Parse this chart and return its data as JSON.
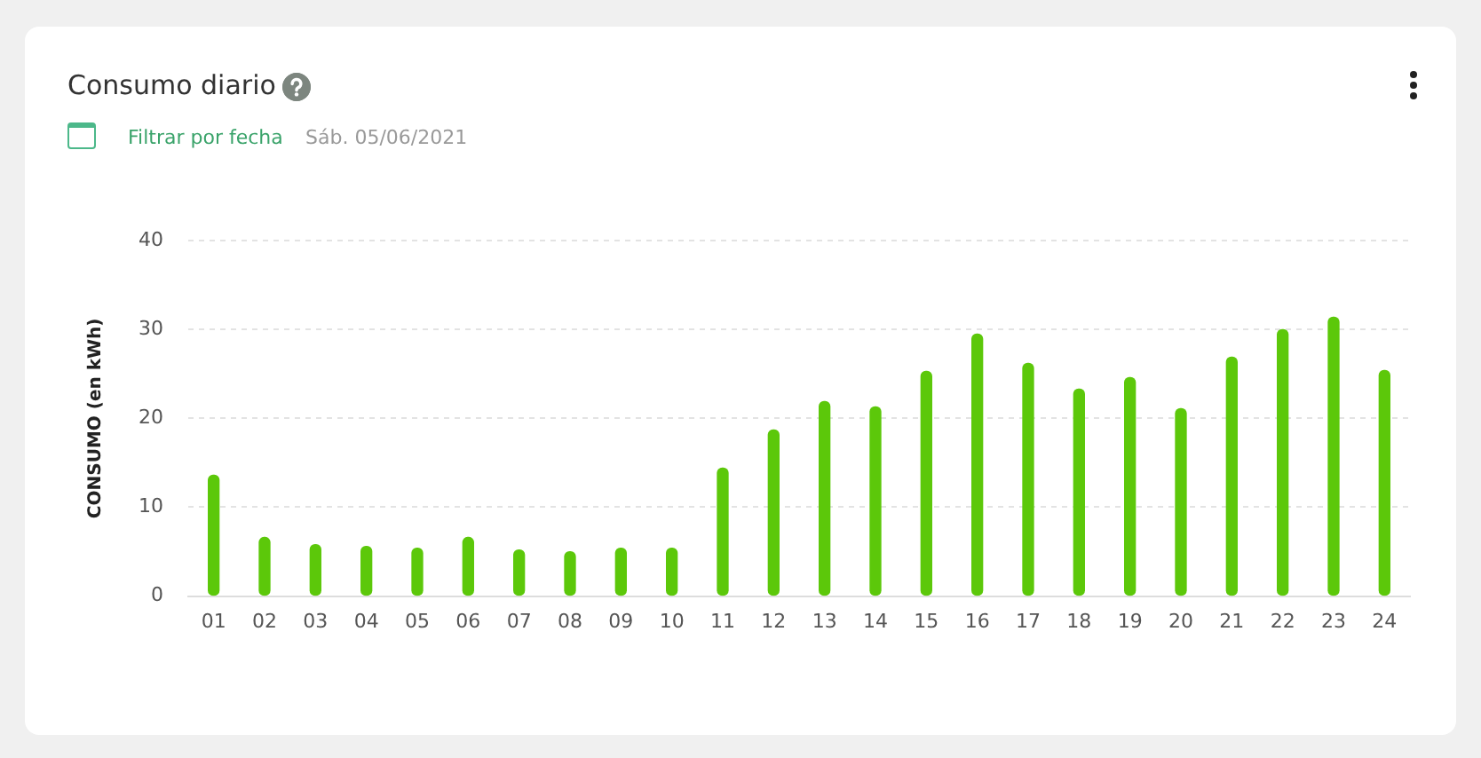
{
  "chart_data": {
    "type": "bar",
    "title": "Consumo diario",
    "subtitle": "Sáb. 05/06/2021",
    "annotations": [
      "Filtrar por fecha"
    ],
    "ylabel": "CONSUMO (en kWh)",
    "categories": [
      "01",
      "02",
      "03",
      "04",
      "05",
      "06",
      "07",
      "08",
      "09",
      "10",
      "11",
      "12",
      "13",
      "14",
      "15",
      "16",
      "17",
      "18",
      "19",
      "20",
      "21",
      "22",
      "23",
      "24"
    ],
    "values": [
      13.6,
      6.6,
      5.8,
      5.6,
      5.4,
      6.6,
      5.2,
      5.0,
      5.4,
      5.4,
      14.4,
      18.7,
      21.9,
      21.3,
      25.3,
      29.5,
      26.2,
      23.3,
      24.6,
      21.1,
      26.9,
      30.0,
      31.4,
      25.4
    ],
    "color": "#5cc80a",
    "ylim": [
      0,
      40
    ],
    "yticks": [
      0,
      10,
      20,
      30,
      40
    ],
    "grid": "y",
    "legend": false
  }
}
